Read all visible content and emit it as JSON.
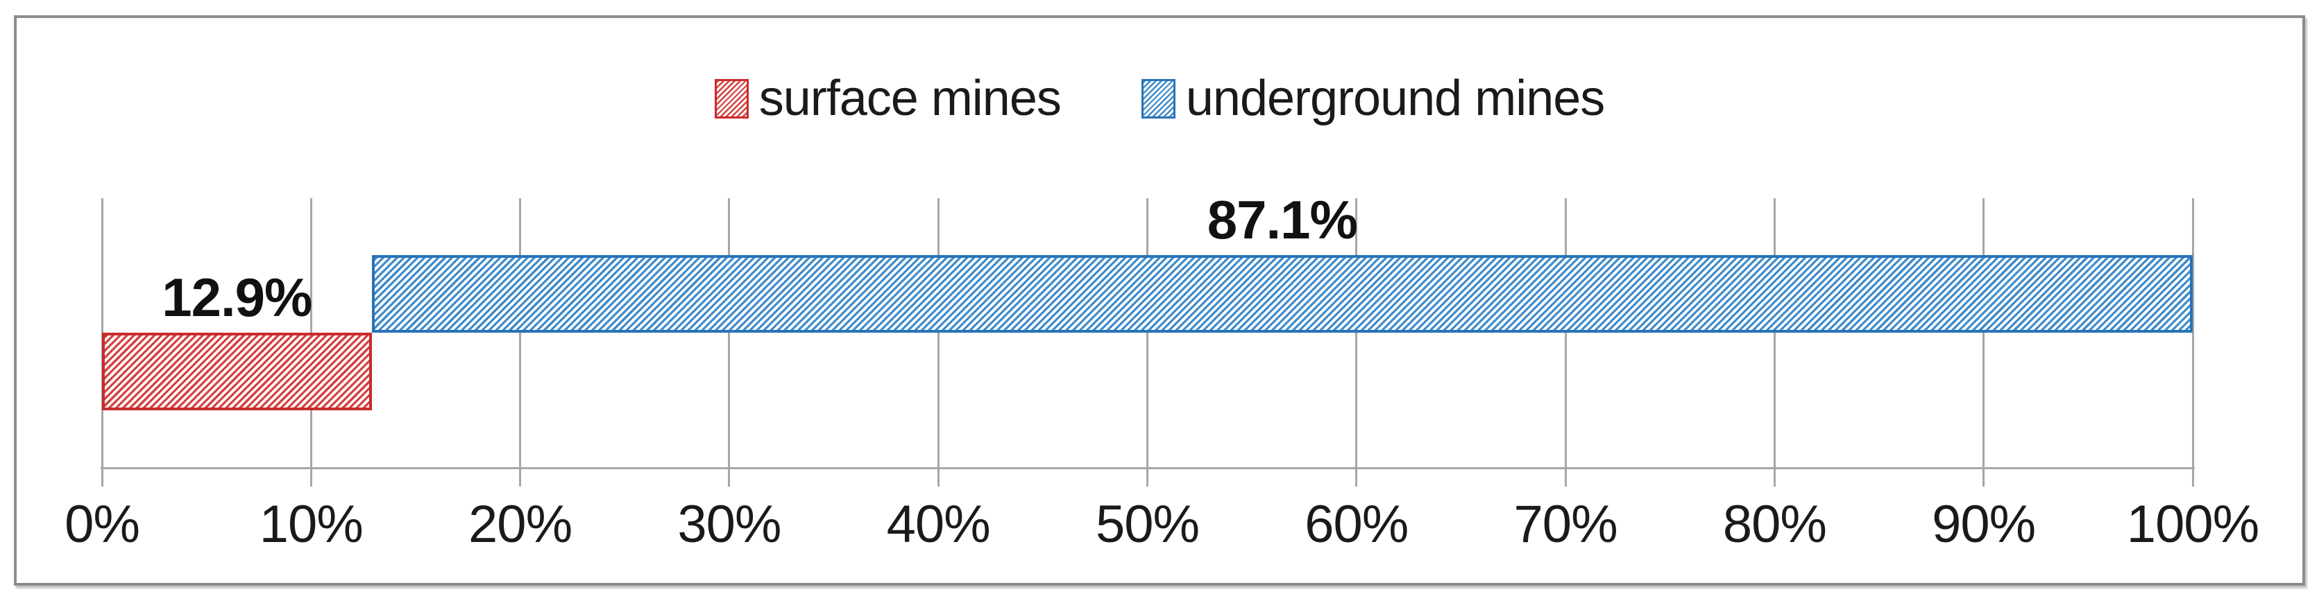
{
  "chart_data": {
    "type": "bar",
    "orientation": "horizontal",
    "stacked": true,
    "title": "",
    "xlabel": "",
    "ylabel": "",
    "grid": true,
    "legend": {
      "position": "top",
      "entries": [
        "surface mines",
        "underground mines"
      ]
    },
    "series": [
      {
        "name": "surface mines",
        "value": 12.9,
        "data_label": "12.9%",
        "pattern": "diagonal-hatch",
        "hatch_color": "#D4403F",
        "border_color": "#C92B2B"
      },
      {
        "name": "underground mines",
        "value": 87.1,
        "data_label": "87.1%",
        "pattern": "diagonal-hatch",
        "hatch_color": "#3E8BCA",
        "border_color": "#2873B8"
      }
    ],
    "x_axis": {
      "min": 0,
      "max": 100,
      "step": 10,
      "tick_labels": [
        "0%",
        "10%",
        "20%",
        "30%",
        "40%",
        "50%",
        "60%",
        "70%",
        "80%",
        "90%",
        "100%"
      ]
    }
  },
  "colors": {
    "gridline": "#A6A6A6",
    "axis_line": "#A6A6A6",
    "chart_border": "#8C8C8C",
    "text": "#1A1A1A",
    "background": "#FFFFFF"
  }
}
